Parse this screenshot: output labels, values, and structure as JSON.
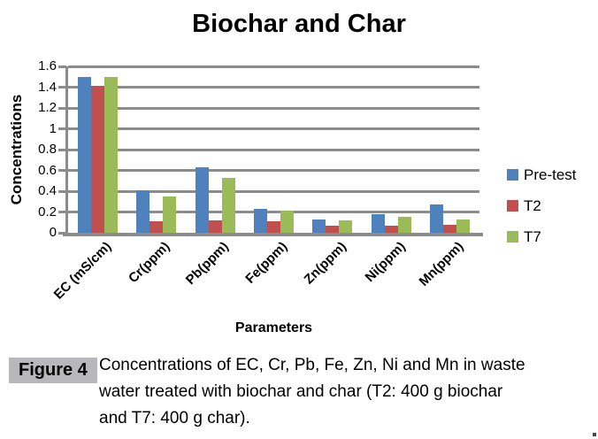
{
  "chart_data": {
    "type": "bar",
    "title": "Biochar and Char",
    "xlabel": "Parameters",
    "ylabel": "Concentrations",
    "categories": [
      "EC (mS/cm)",
      "Cr(ppm)",
      "Pb(ppm)",
      "Fe(ppm)",
      "Zn(ppm)",
      "Ni(ppm)",
      "Mn(ppm)"
    ],
    "series": [
      {
        "name": "Pre-test",
        "color": "#4F81BD",
        "values": [
          1.5,
          0.41,
          0.63,
          0.23,
          0.13,
          0.18,
          0.27
        ]
      },
      {
        "name": "T2",
        "color": "#C0504D",
        "values": [
          1.41,
          0.11,
          0.12,
          0.11,
          0.07,
          0.07,
          0.08
        ]
      },
      {
        "name": "T7",
        "color": "#9BBB59",
        "values": [
          1.5,
          0.35,
          0.53,
          0.21,
          0.12,
          0.15,
          0.13
        ]
      }
    ],
    "ylim": [
      0,
      1.6
    ],
    "y_ticks": [
      "1.6",
      "1.4",
      "1.2",
      "1",
      "0.8",
      "0.6",
      "0.4",
      "0.2",
      "0"
    ],
    "grid": "horizontal",
    "legend_position": "right",
    "gridline_color": "#8C8C8C"
  },
  "caption": {
    "label": "Figure 4",
    "lines": [
      "Concentrations of EC, Cr, Pb, Fe, Zn, Ni and Mn in waste",
      "water treated with biochar and char (T2: 400 g biochar",
      "and T7: 400 g char)."
    ]
  }
}
